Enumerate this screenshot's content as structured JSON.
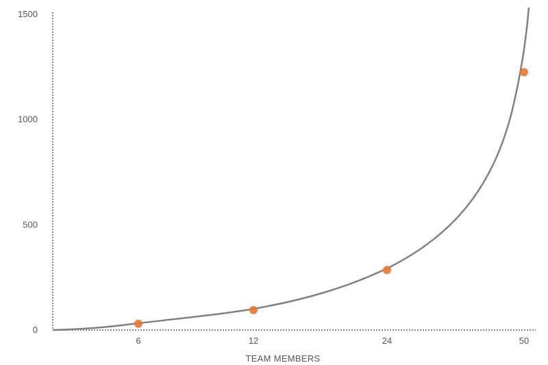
{
  "chart_data": {
    "type": "scatter",
    "title": "",
    "xlabel": "TEAM MEMBERS",
    "ylabel": "",
    "x_ticks": [
      "6",
      "12",
      "24",
      "50"
    ],
    "y_ticks": [
      0,
      500,
      1000,
      1500
    ],
    "ylim": [
      0,
      1500
    ],
    "grid": false,
    "points": [
      {
        "x": "6",
        "y": 30
      },
      {
        "x": "12",
        "y": 95
      },
      {
        "x": "24",
        "y": 285
      },
      {
        "x": "50",
        "y": 1225
      }
    ],
    "curve": "exponential trend",
    "colors": {
      "points": "#e8772e",
      "curve": "#808080",
      "axes": "#888888"
    }
  }
}
